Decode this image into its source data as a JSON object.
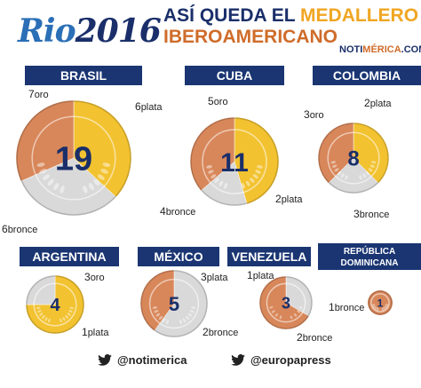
{
  "header": {
    "logo_word": "Rio",
    "logo_year": "2016",
    "title_line1_a": "ASÍ QUEDA EL ",
    "title_line1_b": "MEDALLERO",
    "title_line2": "IBEROAMERICANO",
    "brand_a": "NOTI",
    "brand_b": "MÉRICA",
    "brand_c": ".COM"
  },
  "chart_data": {
    "type": "pie",
    "title": "ASÍ QUEDA EL MEDALLERO IBEROAMERICANO",
    "colors": {
      "oro": "#f2c230",
      "plata": "#d9d9d9",
      "bronce": "#d8875a",
      "label_bg": "#1a3572",
      "number": "#1a2f6a"
    },
    "countries": [
      {
        "name": "BRASIL",
        "total": 19,
        "oro": 7,
        "plata": 6,
        "bronce": 6,
        "labels": {
          "oro": "7oro",
          "plata": "6plata",
          "bronce": "6bronce"
        }
      },
      {
        "name": "CUBA",
        "total": 11,
        "oro": 5,
        "plata": 2,
        "bronce": 4,
        "labels": {
          "oro": "5oro",
          "plata": "2plata",
          "bronce": "4bronce"
        }
      },
      {
        "name": "COLOMBIA",
        "total": 8,
        "oro": 3,
        "plata": 2,
        "bronce": 3,
        "labels": {
          "oro": "3oro",
          "plata": "2plata",
          "bronce": "3bronce"
        }
      },
      {
        "name": "ARGENTINA",
        "total": 4,
        "oro": 3,
        "plata": 1,
        "bronce": 0,
        "labels": {
          "oro": "3oro",
          "plata": "1plata"
        }
      },
      {
        "name": "MÉXICO",
        "total": 5,
        "oro": 0,
        "plata": 3,
        "bronce": 2,
        "labels": {
          "plata": "3plata",
          "bronce": "2bronce"
        }
      },
      {
        "name": "VENEZUELA",
        "total": 3,
        "oro": 0,
        "plata": 1,
        "bronce": 2,
        "labels": {
          "plata": "1plata",
          "bronce": "2bronce"
        }
      },
      {
        "name_lines": [
          "REPÚBLICA",
          "DOMINICANA"
        ],
        "total": 1,
        "oro": 0,
        "plata": 0,
        "bronce": 1,
        "labels": {
          "bronce": "1bronce"
        }
      }
    ]
  },
  "footer": {
    "handle1": "@notimerica",
    "handle2": "@europapress",
    "twitter_icon": "twitter-bird-icon"
  }
}
